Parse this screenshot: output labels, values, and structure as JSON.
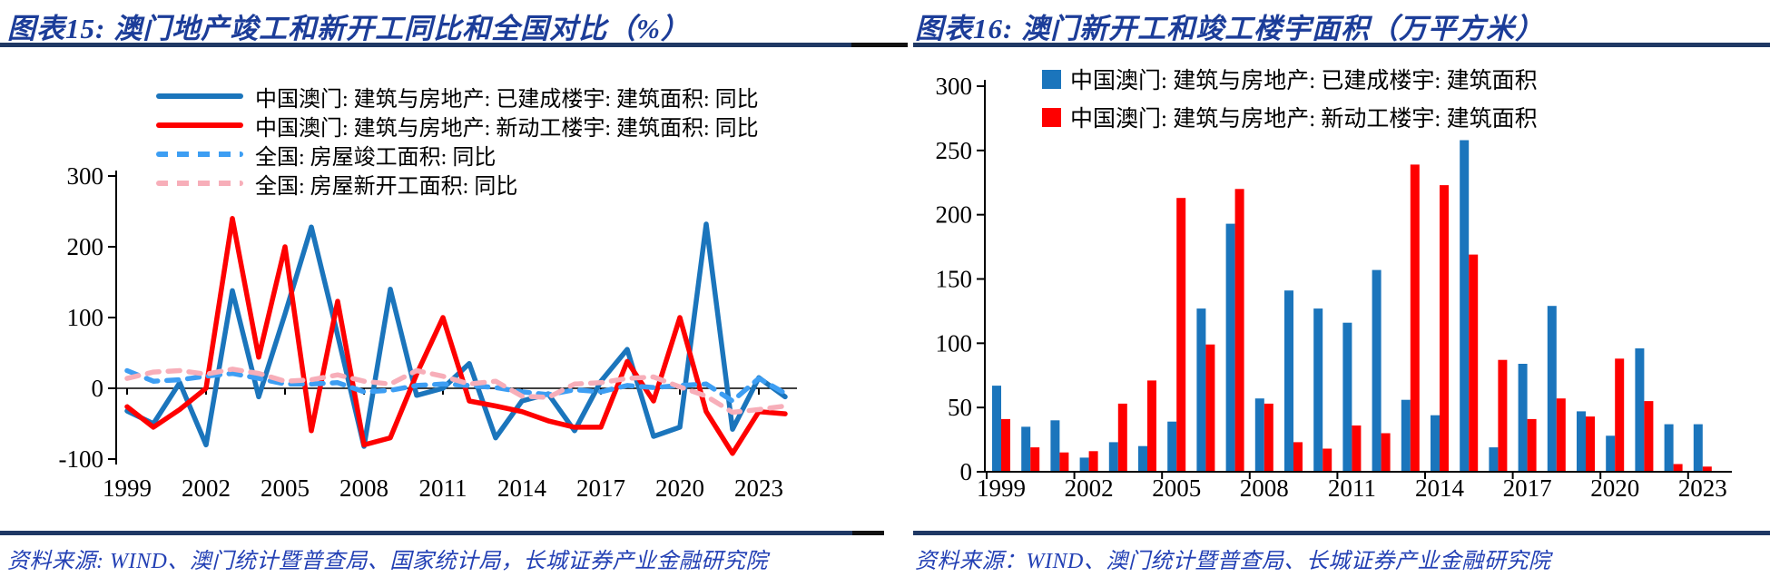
{
  "colors": {
    "rule_blue": "#1F3864",
    "rule_black": "#111111",
    "title_blue": "#1C3D99",
    "source_blue": "#2340B4",
    "axis_black": "#000000",
    "macau_blue": "#1B75BC",
    "macau_red": "#FE0000",
    "national_blue": "#3D9EF3",
    "national_pink": "#F7AEB9"
  },
  "left_chart": {
    "title": "图表15:  澳门地产竣工和新开工同比和全国对比（%）",
    "source": "资料来源: WIND、澳门统计暨普查局、国家统计局，长城证券产业金融研究院",
    "chart_data": {
      "type": "line",
      "x": [
        1999,
        2000,
        2001,
        2002,
        2003,
        2004,
        2005,
        2006,
        2007,
        2008,
        2009,
        2010,
        2011,
        2012,
        2013,
        2014,
        2015,
        2016,
        2017,
        2018,
        2019,
        2020,
        2021,
        2022,
        2023,
        2024
      ],
      "xticks": [
        1999,
        2002,
        2005,
        2008,
        2011,
        2014,
        2017,
        2020,
        2023
      ],
      "yticks": [
        300,
        200,
        100,
        0,
        -100
      ],
      "ylim": [
        -100,
        300
      ],
      "grid": false,
      "legend_position": "top-left",
      "series": [
        {
          "name": "中国澳门: 建筑与房地产: 已建成楼宇: 建筑面积: 同比",
          "color_key": "macau_blue",
          "dash": false,
          "values": [
            -32,
            -50,
            8,
            -80,
            138,
            -12,
            105,
            228,
            75,
            -82,
            140,
            -10,
            0,
            35,
            -70,
            -18,
            -8,
            -60,
            10,
            55,
            -68,
            -55,
            232,
            -58,
            15,
            -12
          ]
        },
        {
          "name": "中国澳门: 建筑与房地产: 新动工楼宇: 建筑面积: 同比",
          "color_key": "macau_red",
          "dash": false,
          "values": [
            -26,
            -55,
            -30,
            0,
            240,
            44,
            200,
            -60,
            123,
            -80,
            -70,
            20,
            100,
            -18,
            -25,
            -33,
            -46,
            -55,
            -55,
            38,
            -18,
            100,
            -33,
            -92,
            -33,
            -36
          ]
        },
        {
          "name": "全国: 房屋竣工面积: 同比",
          "color_key": "national_blue",
          "dash": true,
          "values": [
            25,
            10,
            12,
            17,
            21,
            14,
            6,
            6,
            8,
            -5,
            -3,
            4,
            6,
            4,
            1,
            -5,
            -9,
            -2,
            -5,
            4,
            1,
            4,
            6,
            -18,
            14,
            -7
          ]
        },
        {
          "name": "全国: 房屋新开工面积: 同比",
          "color_key": "national_pink",
          "dash": true,
          "values": [
            14,
            23,
            25,
            20,
            27,
            21,
            10,
            12,
            19,
            10,
            6,
            25,
            17,
            6,
            10,
            -11,
            -13,
            6,
            8,
            14,
            16,
            2,
            -11,
            -34,
            -30,
            -25
          ]
        }
      ]
    }
  },
  "right_chart": {
    "title": "图表16:  澳门新开工和竣工楼宇面积（万平方米）",
    "source": "资料来源：WIND、澳门统计暨普查局、长城证券产业金融研究院",
    "chart_data": {
      "type": "bar",
      "categories": [
        1999,
        2000,
        2001,
        2002,
        2003,
        2004,
        2005,
        2006,
        2007,
        2008,
        2009,
        2010,
        2011,
        2012,
        2013,
        2014,
        2015,
        2016,
        2017,
        2018,
        2019,
        2020,
        2021,
        2022,
        2023
      ],
      "xticks": [
        1999,
        2002,
        2005,
        2008,
        2011,
        2014,
        2017,
        2020,
        2023
      ],
      "yticks": [
        0,
        50,
        100,
        150,
        200,
        250,
        300
      ],
      "ylim": [
        0,
        300
      ],
      "grid": false,
      "legend_position": "top",
      "series": [
        {
          "name": "中国澳门: 建筑与房地产: 已建成楼宇: 建筑面积",
          "color_key": "macau_blue",
          "values": [
            67,
            35,
            40,
            11,
            23,
            20,
            39,
            127,
            193,
            57,
            141,
            127,
            116,
            157,
            56,
            44,
            258,
            19,
            84,
            129,
            47,
            28,
            96,
            37,
            37
          ]
        },
        {
          "name": "中国澳门: 建筑与房地产: 新动工楼宇: 建筑面积",
          "color_key": "macau_red",
          "values": [
            41,
            19,
            15,
            16,
            53,
            71,
            213,
            99,
            220,
            53,
            23,
            18,
            36,
            30,
            239,
            223,
            169,
            87,
            41,
            57,
            43,
            88,
            55,
            6,
            4
          ]
        }
      ]
    }
  }
}
